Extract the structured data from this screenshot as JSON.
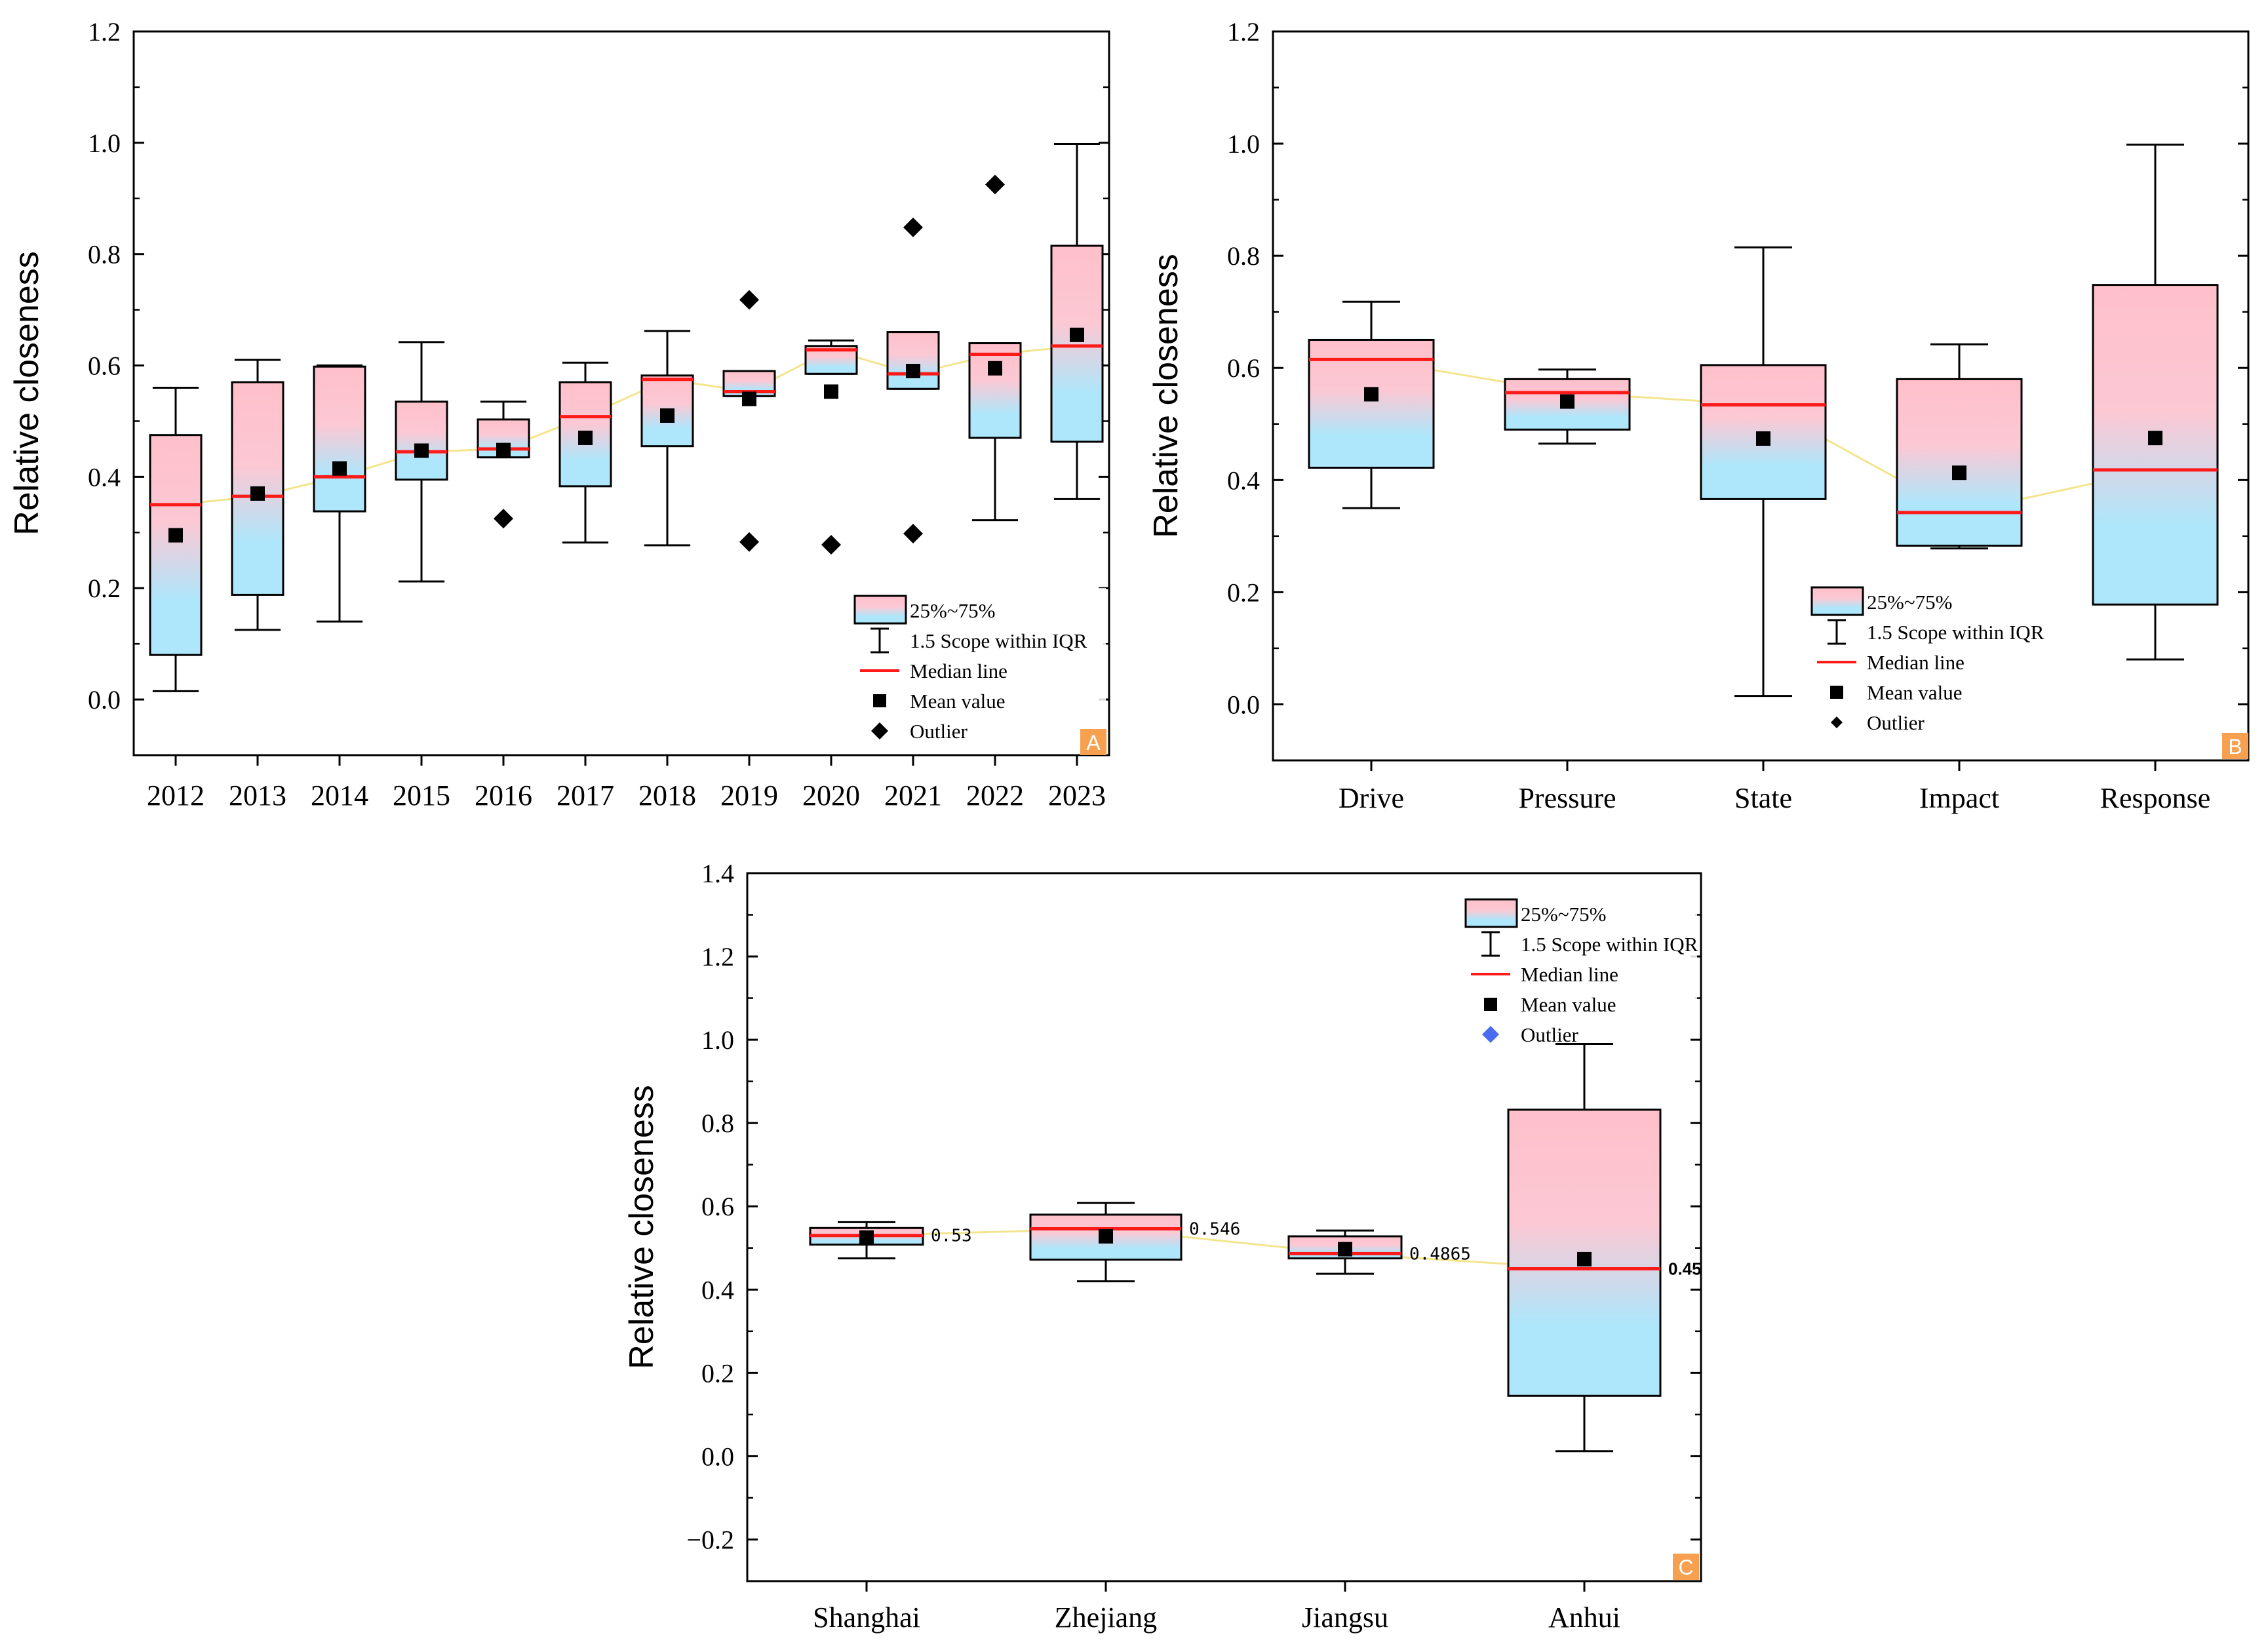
{
  "chart_data": [
    {
      "panel": "A",
      "type": "box",
      "title": "",
      "xlabel": "",
      "ylabel": "Relative closeness",
      "ylim": [
        -0.1,
        1.2
      ],
      "yticks": [
        0.0,
        0.2,
        0.4,
        0.6,
        0.8,
        1.0,
        1.2
      ],
      "ytick_labels": [
        "0.0",
        "0.2",
        "0.4",
        "0.6",
        "0.8",
        "1.0",
        "1.2"
      ],
      "categories": [
        "2012",
        "2013",
        "2014",
        "2015",
        "2016",
        "2017",
        "2018",
        "2019",
        "2020",
        "2021",
        "2022",
        "2023"
      ],
      "boxes": [
        {
          "category": "2012",
          "whisker_low": 0.015,
          "q1": 0.08,
          "median": 0.35,
          "q3": 0.475,
          "whisker_high": 0.56,
          "mean": 0.295,
          "outliers": []
        },
        {
          "category": "2013",
          "whisker_low": 0.125,
          "q1": 0.188,
          "median": 0.365,
          "q3": 0.57,
          "whisker_high": 0.61,
          "mean": 0.37,
          "outliers": []
        },
        {
          "category": "2014",
          "whisker_low": 0.14,
          "q1": 0.338,
          "median": 0.4,
          "q3": 0.598,
          "whisker_high": 0.6,
          "mean": 0.415,
          "outliers": []
        },
        {
          "category": "2015",
          "whisker_low": 0.212,
          "q1": 0.395,
          "median": 0.445,
          "q3": 0.535,
          "whisker_high": 0.642,
          "mean": 0.447,
          "outliers": []
        },
        {
          "category": "2016",
          "whisker_low": 0.435,
          "q1": 0.435,
          "median": 0.45,
          "q3": 0.503,
          "whisker_high": 0.535,
          "mean": 0.448,
          "outliers": [
            0.325
          ]
        },
        {
          "category": "2017",
          "whisker_low": 0.282,
          "q1": 0.383,
          "median": 0.508,
          "q3": 0.57,
          "whisker_high": 0.605,
          "mean": 0.47,
          "outliers": []
        },
        {
          "category": "2018",
          "whisker_low": 0.277,
          "q1": 0.455,
          "median": 0.575,
          "q3": 0.582,
          "whisker_high": 0.662,
          "mean": 0.51,
          "outliers": []
        },
        {
          "category": "2019",
          "whisker_low": 0.545,
          "q1": 0.545,
          "median": 0.553,
          "q3": 0.59,
          "whisker_high": 0.59,
          "mean": 0.54,
          "outliers": [
            0.718,
            0.283
          ]
        },
        {
          "category": "2020",
          "whisker_low": 0.585,
          "q1": 0.585,
          "median": 0.628,
          "q3": 0.635,
          "whisker_high": 0.645,
          "mean": 0.553,
          "outliers": [
            0.278
          ]
        },
        {
          "category": "2021",
          "whisker_low": 0.558,
          "q1": 0.558,
          "median": 0.585,
          "q3": 0.66,
          "whisker_high": 0.66,
          "mean": 0.59,
          "outliers": [
            0.848,
            0.298
          ]
        },
        {
          "category": "2022",
          "whisker_low": 0.322,
          "q1": 0.47,
          "median": 0.62,
          "q3": 0.64,
          "whisker_high": 0.64,
          "mean": 0.595,
          "outliers": [
            0.925
          ]
        },
        {
          "category": "2023",
          "whisker_low": 0.36,
          "q1": 0.463,
          "median": 0.635,
          "q3": 0.815,
          "whisker_high": 0.998,
          "mean": 0.655,
          "outliers": []
        }
      ],
      "legend": [
        "25%~75%",
        "1.5 Scope within IQR",
        "Median line",
        "Mean value",
        "Outlier"
      ],
      "legend_position": "bottom-right",
      "badge": "A"
    },
    {
      "panel": "B",
      "type": "box",
      "title": "",
      "xlabel": "",
      "ylabel": "Relative closeness",
      "ylim": [
        -0.1,
        1.2
      ],
      "yticks": [
        0.0,
        0.2,
        0.4,
        0.6,
        0.8,
        1.0,
        1.2
      ],
      "ytick_labels": [
        "0.0",
        "0.2",
        "0.4",
        "0.6",
        "0.8",
        "1.0",
        "1.2"
      ],
      "categories": [
        "Drive",
        "Pressure",
        "State",
        "Impact",
        "Response"
      ],
      "boxes": [
        {
          "category": "Drive",
          "whisker_low": 0.35,
          "q1": 0.422,
          "median": 0.615,
          "q3": 0.65,
          "whisker_high": 0.718,
          "mean": 0.553,
          "outliers": []
        },
        {
          "category": "Pressure",
          "whisker_low": 0.465,
          "q1": 0.49,
          "median": 0.556,
          "q3": 0.58,
          "whisker_high": 0.597,
          "mean": 0.54,
          "outliers": []
        },
        {
          "category": "State",
          "whisker_low": 0.015,
          "q1": 0.366,
          "median": 0.534,
          "q3": 0.605,
          "whisker_high": 0.815,
          "mean": 0.474,
          "outliers": []
        },
        {
          "category": "Impact",
          "whisker_low": 0.278,
          "q1": 0.283,
          "median": 0.342,
          "q3": 0.58,
          "whisker_high": 0.642,
          "mean": 0.413,
          "outliers": []
        },
        {
          "category": "Response",
          "whisker_low": 0.08,
          "q1": 0.178,
          "median": 0.418,
          "q3": 0.748,
          "whisker_high": 0.998,
          "mean": 0.475,
          "outliers": []
        }
      ],
      "legend": [
        "25%~75%",
        "1.5 Scope within IQR",
        "Median line",
        "Mean value",
        "Outlier"
      ],
      "legend_position": "bottom-center",
      "badge": "B"
    },
    {
      "panel": "C",
      "type": "box",
      "title": "",
      "xlabel": "",
      "ylabel": "Relative closeness",
      "ylim": [
        -0.3,
        1.4
      ],
      "yticks": [
        -0.2,
        0.0,
        0.2,
        0.4,
        0.6,
        0.8,
        1.0,
        1.2,
        1.4
      ],
      "ytick_labels": [
        "−0.2",
        "0.0",
        "0.2",
        "0.4",
        "0.6",
        "0.8",
        "1.0",
        "1.2",
        "1.4"
      ],
      "categories": [
        "Shanghai",
        "Zhejiang",
        "Jiangsu",
        "Anhui"
      ],
      "boxes": [
        {
          "category": "Shanghai",
          "whisker_low": 0.475,
          "q1": 0.508,
          "median": 0.53,
          "q3": 0.548,
          "whisker_high": 0.562,
          "mean": 0.525,
          "outliers": []
        },
        {
          "category": "Zhejiang",
          "whisker_low": 0.42,
          "q1": 0.472,
          "median": 0.546,
          "q3": 0.58,
          "whisker_high": 0.608,
          "mean": 0.528,
          "outliers": []
        },
        {
          "category": "Jiangsu",
          "whisker_low": 0.438,
          "q1": 0.475,
          "median": 0.4865,
          "q3": 0.528,
          "whisker_high": 0.542,
          "mean": 0.497,
          "outliers": []
        },
        {
          "category": "Anhui",
          "whisker_low": 0.012,
          "q1": 0.145,
          "median": 0.45,
          "q3": 0.832,
          "whisker_high": 0.99,
          "mean": 0.473,
          "outliers": []
        }
      ],
      "median_labels": [
        "0.53",
        "0.546",
        "0.4865",
        "0.45"
      ],
      "legend": [
        "25%~75%",
        "1.5 Scope within IQR",
        "Median line",
        "Mean value",
        "Outlier"
      ],
      "legend_position": "top-right",
      "badge": "C"
    }
  ],
  "colors": {
    "box_top": "#ffc0cb",
    "box_bottom": "#aee6fb",
    "median": "#ff1a1a",
    "trend": "#f3e58e",
    "mean": "#000000",
    "outlier_black": "#000000",
    "outlier_blue": "#4a6cf0",
    "badge": "#f7a050"
  }
}
